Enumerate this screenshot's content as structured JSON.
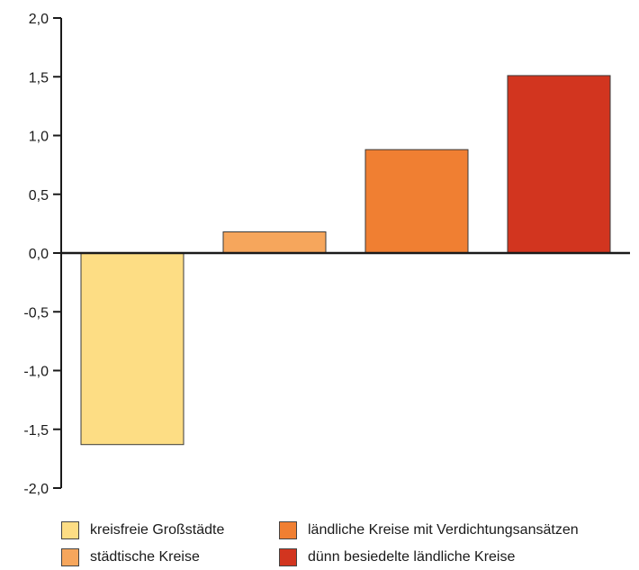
{
  "chart_data": {
    "type": "bar",
    "categories": [
      "kreisfreie Großstädte",
      "städtische Kreise",
      "ländliche Kreise mit Verdichtungsansätzen",
      "dünn besiedelte ländliche Kreise"
    ],
    "values": [
      -1.63,
      0.18,
      0.88,
      1.51
    ],
    "colors": [
      "#FDDD84",
      "#F6A65C",
      "#F07F32",
      "#D2351F"
    ],
    "ylim": [
      -2.0,
      2.0
    ],
    "yticks": [
      "2,0",
      "1,5",
      "1,0",
      "0,5",
      "0,0",
      "-0,5",
      "-1,0",
      "-1,5",
      "-2,0"
    ],
    "grid": false,
    "legend_position": "bottom"
  }
}
